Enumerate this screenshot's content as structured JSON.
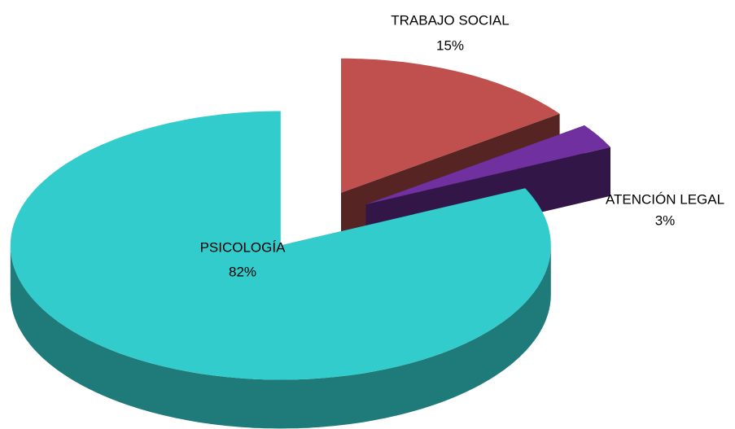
{
  "chart_data": {
    "type": "pie",
    "categories": [
      "TRABAJO SOCIAL",
      "ATENCIÓN LEGAL",
      "PSICOLOGÍA"
    ],
    "values": [
      15,
      3,
      82
    ],
    "value_labels": [
      "15%",
      "3%",
      "82%"
    ],
    "colors": [
      "#c0504d",
      "#7030a0",
      "#33cccc"
    ]
  }
}
